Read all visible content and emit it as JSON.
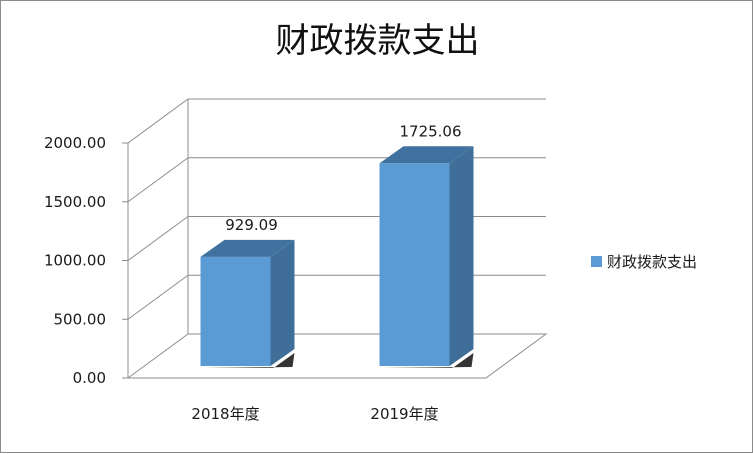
{
  "chart_data": {
    "type": "bar",
    "title": "财政拨款支出",
    "categories": [
      "2018年度",
      "2019年度"
    ],
    "series": [
      {
        "name": "财政拨款支出",
        "values": [
          929.09,
          1725.06
        ]
      }
    ],
    "data_labels": [
      "929.09",
      "1725.06"
    ],
    "yticks": [
      "0.00",
      "500.00",
      "1000.00",
      "1500.00",
      "2000.00"
    ],
    "ylim": [
      0,
      2000
    ],
    "xlabel": "",
    "ylabel": "",
    "grid": true,
    "legend": "right",
    "style_3d": true,
    "colors": {
      "bar_front": "#5b9bd5",
      "bar_side": "#3f6f99",
      "bar_top": "#41729f",
      "grid": "#8c8c8c",
      "legend_swatch": "#5b9bd5"
    }
  }
}
